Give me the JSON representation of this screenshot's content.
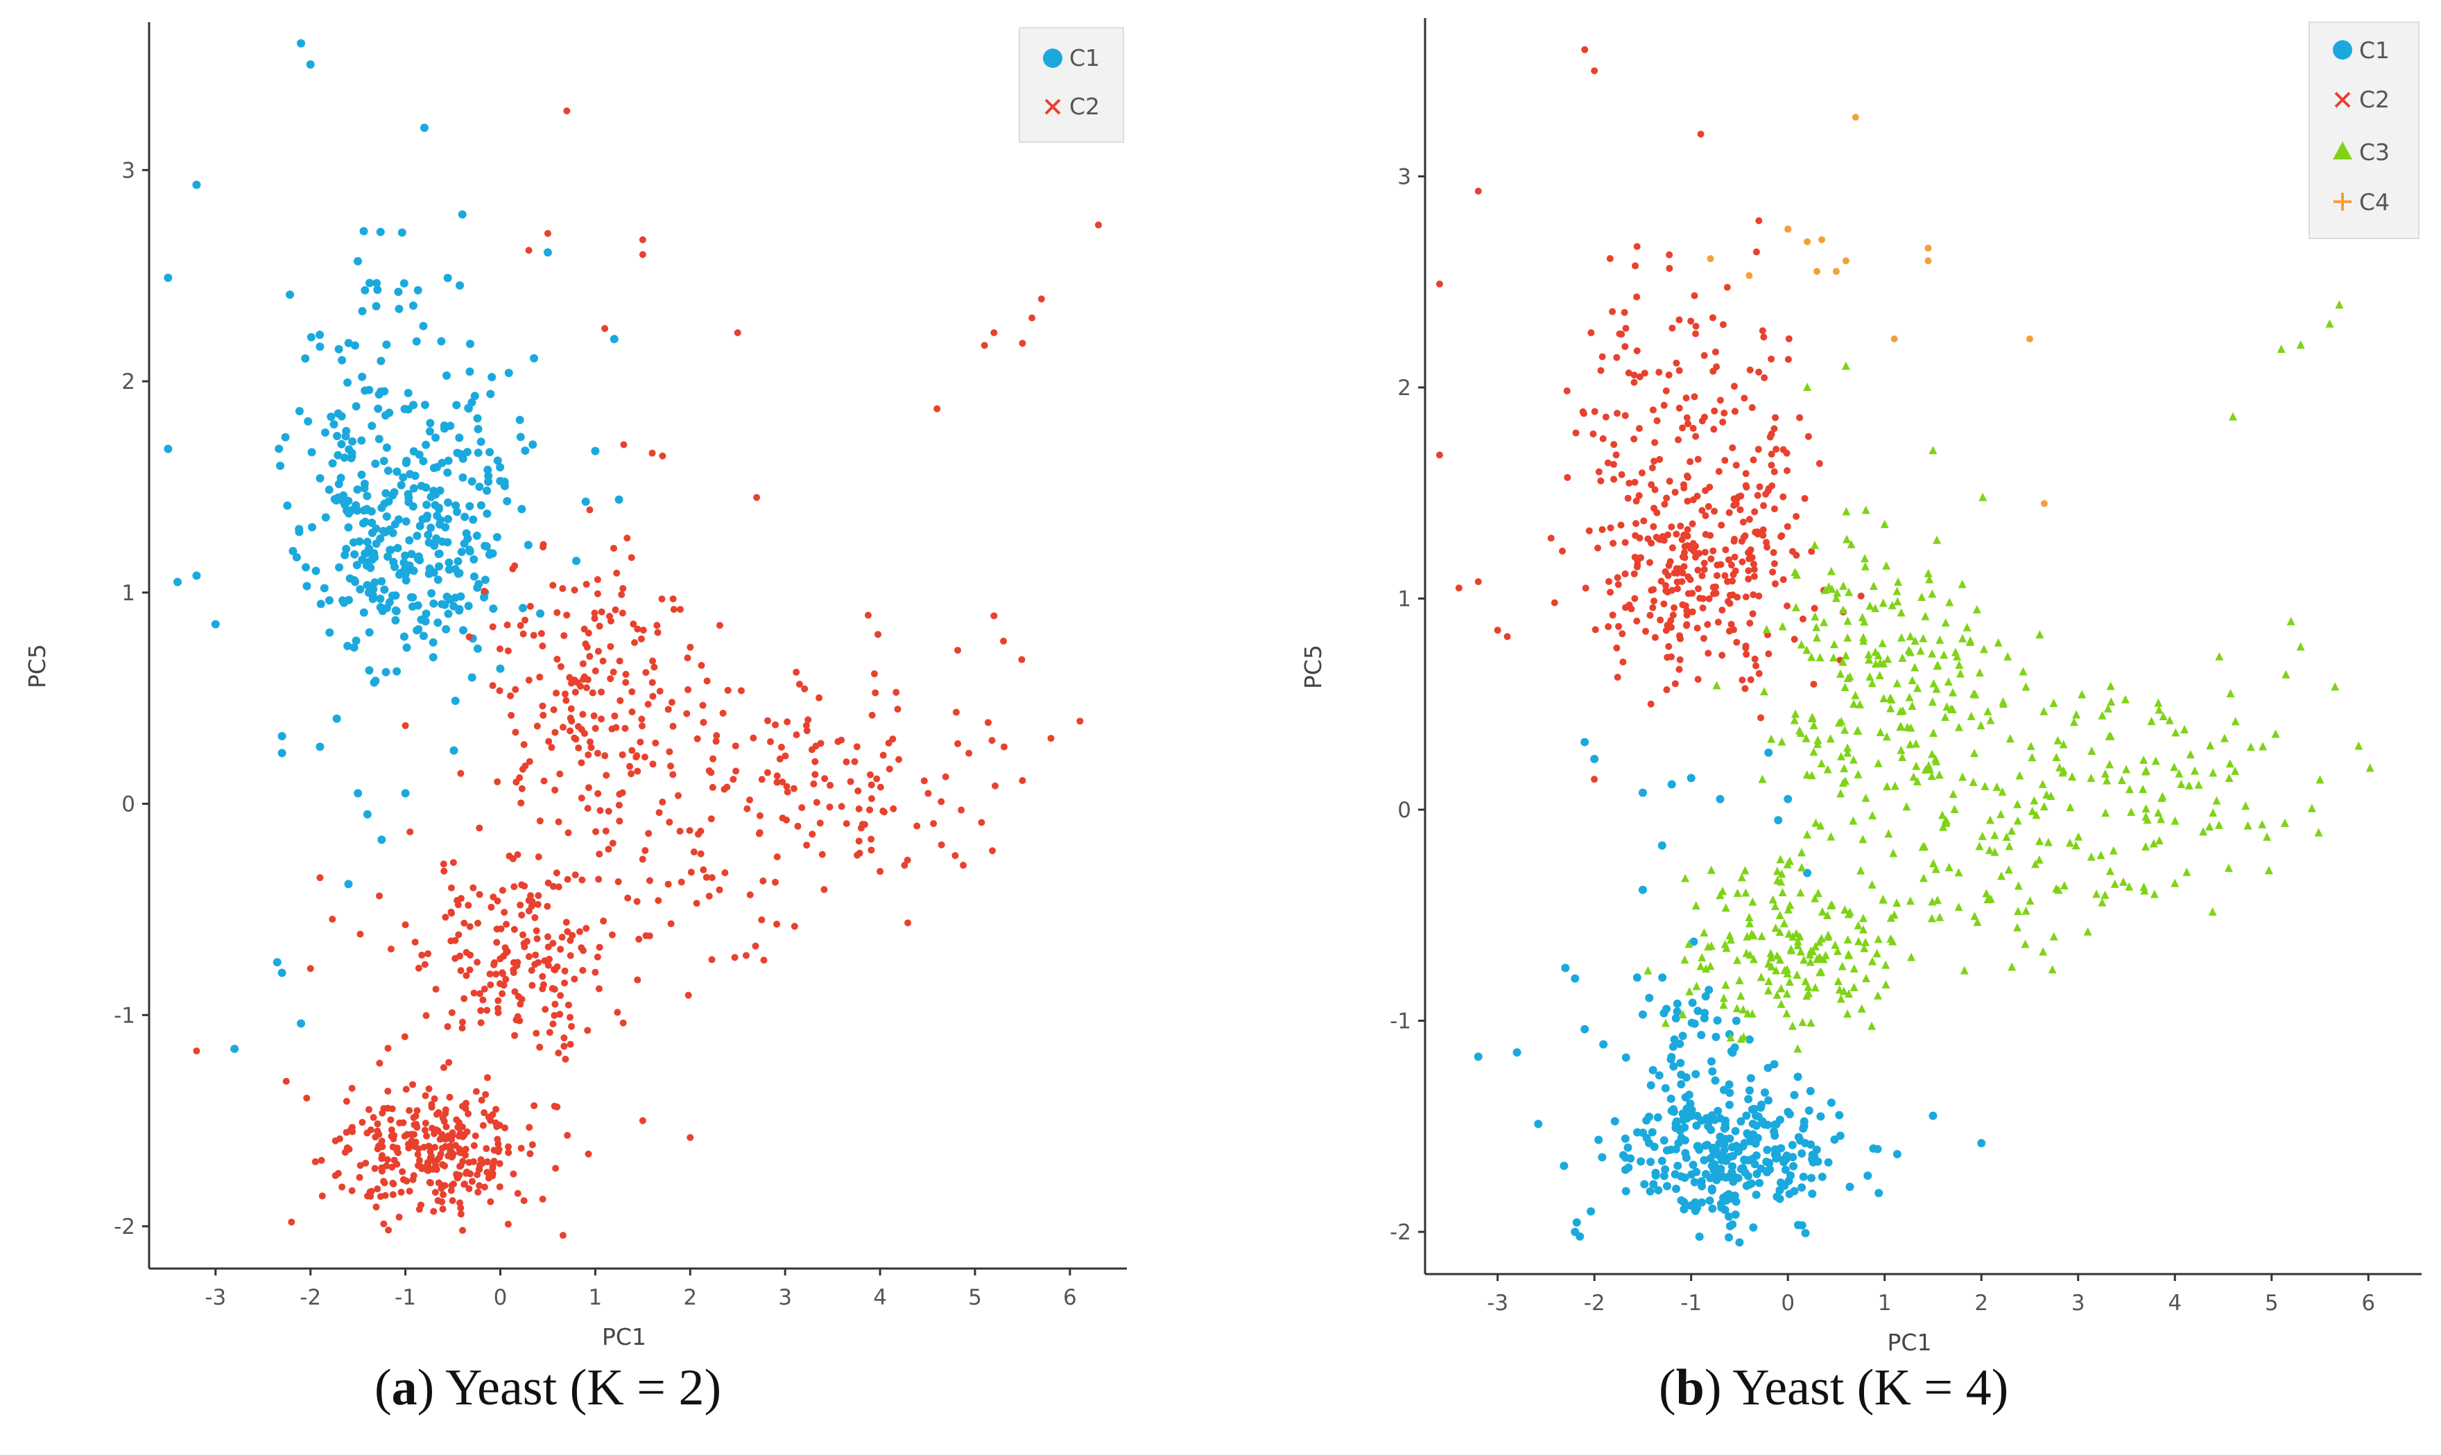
{
  "colors": {
    "C1": "#1BA9DD",
    "C2": "#E8412E",
    "C3": "#7FD317",
    "C4": "#F4A03A",
    "axis": "#333333"
  },
  "chart_data": [
    {
      "type": "scatter",
      "panel_letter": "a",
      "caption": {
        "letter": "a",
        "text": " Yeast (K = 2)"
      },
      "xlabel": "PC1",
      "ylabel": "PC5",
      "xlim": [
        -3.7,
        6.6
      ],
      "ylim": [
        -2.2,
        3.7
      ],
      "xticks": [
        -3,
        -2,
        -1,
        0,
        1,
        2,
        3,
        4,
        5,
        6
      ],
      "yticks": [
        -2,
        -1,
        0,
        1,
        2,
        3
      ],
      "legend": {
        "position": "top-right",
        "entries": [
          {
            "label": "C1",
            "marker": "circle"
          },
          {
            "label": "C2",
            "marker": "x"
          }
        ]
      },
      "clusters": [
        {
          "name": "C1",
          "marker": "dot",
          "blobs": [
            {
              "cx": -1.05,
              "cy": 1.2,
              "sx": 0.48,
              "sy": 0.28,
              "n": 260,
              "seed": 11
            },
            {
              "cx": -1.4,
              "cy": 1.95,
              "sx": 0.42,
              "sy": 0.32,
              "n": 80,
              "seed": 12
            },
            {
              "cx": -0.35,
              "cy": 1.5,
              "sx": 0.3,
              "sy": 0.45,
              "n": 50,
              "seed": 13
            }
          ],
          "points": [
            [
              -2.1,
              3.6
            ],
            [
              -2.0,
              3.5
            ],
            [
              -0.8,
              3.2
            ],
            [
              -3.2,
              2.93
            ],
            [
              -3.5,
              2.49
            ],
            [
              -3.5,
              1.68
            ],
            [
              -3.4,
              1.05
            ],
            [
              -3.2,
              1.08
            ],
            [
              -3.0,
              0.85
            ],
            [
              -2.3,
              0.32
            ],
            [
              -2.3,
              0.24
            ],
            [
              -1.9,
              0.27
            ],
            [
              -1.5,
              0.05
            ],
            [
              -1.4,
              -0.05
            ],
            [
              -1.25,
              -0.17
            ],
            [
              -1.0,
              0.05
            ],
            [
              -1.6,
              -0.38
            ],
            [
              -2.35,
              -0.75
            ],
            [
              -2.3,
              -0.8
            ],
            [
              -2.1,
              -1.04
            ],
            [
              -2.8,
              -1.16
            ],
            [
              0.5,
              2.61
            ],
            [
              1.2,
              2.2
            ],
            [
              1.0,
              1.67
            ],
            [
              0.9,
              1.43
            ],
            [
              1.25,
              1.44
            ],
            [
              0.8,
              1.15
            ],
            [
              -0.4,
              2.79
            ],
            [
              -0.3,
              1.9
            ]
          ]
        },
        {
          "name": "C2",
          "marker": "dot",
          "blobs": [
            {
              "cx": -0.7,
              "cy": -1.65,
              "sx": 0.55,
              "sy": 0.16,
              "n": 290,
              "seed": 21
            },
            {
              "cx": 0.1,
              "cy": -0.7,
              "sx": 0.6,
              "sy": 0.22,
              "n": 190,
              "seed": 22
            },
            {
              "cx": 0.95,
              "cy": 0.5,
              "sx": 0.6,
              "sy": 0.35,
              "n": 190,
              "seed": 23
            },
            {
              "cx": 3.5,
              "cy": 0.1,
              "sx": 0.9,
              "sy": 0.25,
              "n": 120,
              "seed": 24
            },
            {
              "cx": 1.8,
              "cy": -0.3,
              "sx": 0.7,
              "sy": 0.3,
              "n": 60,
              "seed": 25
            }
          ],
          "points": [
            [
              6.3,
              2.74
            ],
            [
              5.7,
              2.39
            ],
            [
              5.6,
              2.3
            ],
            [
              5.5,
              2.18
            ],
            [
              5.2,
              2.23
            ],
            [
              5.1,
              2.17
            ],
            [
              4.6,
              1.87
            ],
            [
              2.7,
              1.45
            ],
            [
              2.5,
              2.23
            ],
            [
              1.5,
              2.67
            ],
            [
              1.5,
              2.6
            ],
            [
              0.7,
              3.28
            ],
            [
              0.5,
              2.7
            ],
            [
              0.3,
              2.62
            ],
            [
              1.1,
              2.25
            ],
            [
              1.3,
              1.7
            ],
            [
              1.6,
              1.66
            ],
            [
              5.2,
              0.89
            ],
            [
              5.3,
              0.77
            ],
            [
              5.8,
              0.31
            ],
            [
              5.5,
              0.11
            ],
            [
              4.0,
              -0.32
            ],
            [
              3.1,
              -0.58
            ],
            [
              -3.2,
              -1.17
            ],
            [
              -2.0,
              -0.78
            ],
            [
              1.5,
              -1.5
            ],
            [
              2.0,
              -1.58
            ],
            [
              -2.2,
              -1.98
            ],
            [
              -1.0,
              0.37
            ],
            [
              -1.9,
              -0.35
            ]
          ]
        }
      ]
    },
    {
      "type": "scatter",
      "panel_letter": "b",
      "caption": {
        "letter": "b",
        "text": " Yeast (K = 4)"
      },
      "xlabel": "PC1",
      "ylabel": "PC5",
      "xlim": [
        -3.75,
        6.55
      ],
      "ylim": [
        -2.2,
        3.75
      ],
      "xticks": [
        -3,
        -2,
        -1,
        0,
        1,
        2,
        3,
        4,
        5,
        6
      ],
      "yticks": [
        -2,
        -1,
        0,
        1,
        2,
        3
      ],
      "legend": {
        "position": "top-right",
        "entries": [
          {
            "label": "C1",
            "marker": "circle"
          },
          {
            "label": "C2",
            "marker": "x"
          },
          {
            "label": "C3",
            "marker": "triangle"
          },
          {
            "label": "C4",
            "marker": "plus"
          }
        ]
      },
      "clusters": [
        {
          "name": "C1",
          "marker": "dot",
          "blobs": [
            {
              "cx": -0.6,
              "cy": -1.62,
              "sx": 0.6,
              "sy": 0.17,
              "n": 300,
              "seed": 31
            },
            {
              "cx": -1.0,
              "cy": -1.1,
              "sx": 0.4,
              "sy": 0.2,
              "n": 50,
              "seed": 32
            }
          ],
          "points": [
            [
              -2.1,
              0.32
            ],
            [
              -2.0,
              0.24
            ],
            [
              -1.5,
              0.08
            ],
            [
              -1.2,
              0.12
            ],
            [
              -1.0,
              0.15
            ],
            [
              -0.7,
              0.05
            ],
            [
              -1.3,
              -0.17
            ],
            [
              -1.5,
              -0.38
            ],
            [
              -2.3,
              -0.75
            ],
            [
              -2.2,
              -0.8
            ],
            [
              -2.1,
              -1.04
            ],
            [
              -3.2,
              -1.17
            ],
            [
              -2.8,
              -1.15
            ],
            [
              -0.2,
              0.27
            ],
            [
              0.0,
              0.05
            ],
            [
              -0.1,
              -0.05
            ],
            [
              0.2,
              -0.3
            ],
            [
              1.5,
              -1.45
            ],
            [
              2.0,
              -1.58
            ],
            [
              -2.2,
              -2.0
            ],
            [
              -0.5,
              -2.05
            ]
          ]
        },
        {
          "name": "C2",
          "marker": "dot",
          "blobs": [
            {
              "cx": -0.95,
              "cy": 1.15,
              "sx": 0.52,
              "sy": 0.3,
              "n": 260,
              "seed": 41
            },
            {
              "cx": -1.45,
              "cy": 1.95,
              "sx": 0.45,
              "sy": 0.33,
              "n": 90,
              "seed": 42
            },
            {
              "cx": -0.3,
              "cy": 1.6,
              "sx": 0.3,
              "sy": 0.45,
              "n": 55,
              "seed": 43
            }
          ],
          "points": [
            [
              -2.1,
              3.6
            ],
            [
              -2.0,
              3.5
            ],
            [
              -0.9,
              3.2
            ],
            [
              -3.2,
              2.93
            ],
            [
              -3.6,
              2.49
            ],
            [
              -3.6,
              1.68
            ],
            [
              -3.4,
              1.05
            ],
            [
              -3.2,
              1.08
            ],
            [
              -3.0,
              0.85
            ],
            [
              -2.9,
              0.82
            ],
            [
              -0.3,
              2.79
            ],
            [
              0.0,
              2.75
            ]
          ]
        },
        {
          "name": "C3",
          "marker": "triangle",
          "blobs": [
            {
              "cx": 0.9,
              "cy": 0.55,
              "sx": 0.6,
              "sy": 0.35,
              "n": 200,
              "seed": 51
            },
            {
              "cx": 0.1,
              "cy": -0.65,
              "sx": 0.55,
              "sy": 0.22,
              "n": 170,
              "seed": 52
            },
            {
              "cx": 3.5,
              "cy": 0.1,
              "sx": 0.95,
              "sy": 0.27,
              "n": 130,
              "seed": 53
            },
            {
              "cx": 1.9,
              "cy": -0.25,
              "sx": 0.75,
              "sy": 0.3,
              "n": 60,
              "seed": 54
            }
          ],
          "points": [
            [
              5.7,
              2.39
            ],
            [
              5.6,
              2.3
            ],
            [
              5.3,
              2.2
            ],
            [
              5.1,
              2.18
            ],
            [
              4.6,
              1.86
            ],
            [
              5.8,
              2.75
            ],
            [
              5.2,
              0.89
            ],
            [
              5.3,
              0.77
            ],
            [
              5.9,
              0.3
            ],
            [
              5.5,
              0.14
            ],
            [
              4.0,
              -0.35
            ],
            [
              3.1,
              -0.58
            ],
            [
              1.5,
              1.7
            ],
            [
              1.0,
              1.35
            ],
            [
              0.8,
              1.15
            ],
            [
              0.5,
              1.0
            ],
            [
              0.2,
              2.0
            ],
            [
              0.6,
              2.1
            ]
          ]
        },
        {
          "name": "C4",
          "marker": "dot",
          "blobs": [],
          "points": [
            [
              0.7,
              3.28
            ],
            [
              0.0,
              2.75
            ],
            [
              0.2,
              2.69
            ],
            [
              0.35,
              2.7
            ],
            [
              0.6,
              2.6
            ],
            [
              0.3,
              2.55
            ],
            [
              0.5,
              2.55
            ],
            [
              -0.4,
              2.53
            ],
            [
              1.45,
              2.66
            ],
            [
              1.45,
              2.6
            ],
            [
              2.5,
              2.23
            ],
            [
              1.1,
              2.23
            ],
            [
              2.65,
              1.45
            ],
            [
              -0.8,
              2.61
            ]
          ]
        }
      ]
    }
  ]
}
